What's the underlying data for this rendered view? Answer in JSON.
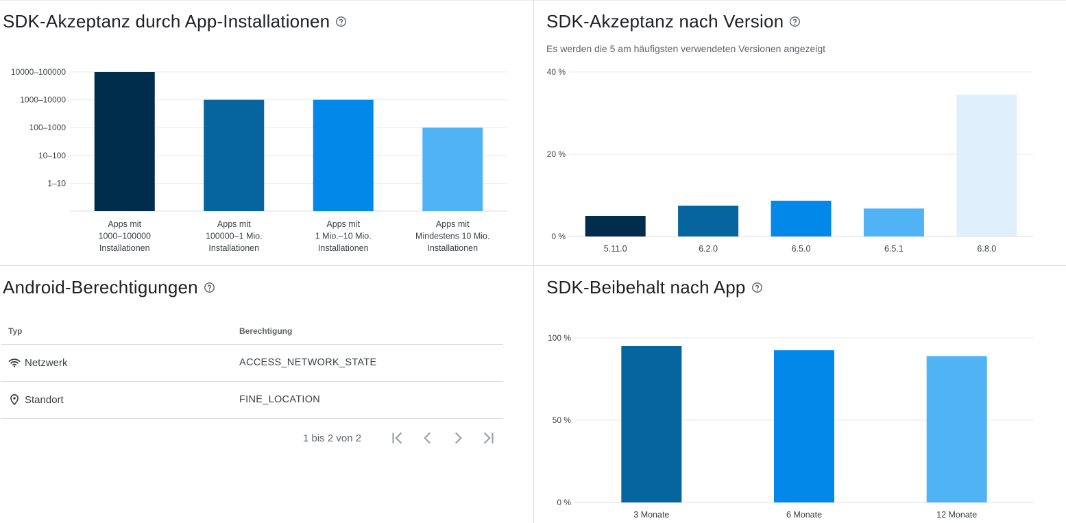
{
  "install_panel": {
    "title": "SDK-Akzeptanz durch App-Installationen"
  },
  "version_panel": {
    "title": "SDK-Akzeptanz nach Version",
    "subtitle": "Es werden die 5 am häufigsten verwendeten Versionen angezeigt"
  },
  "permissions_panel": {
    "title": "Android-Berechtigungen",
    "columns": {
      "type": "Typ",
      "permission": "Berechtigung"
    },
    "rows": [
      {
        "type": "Netzwerk",
        "icon": "wifi-icon",
        "permission": "ACCESS_NETWORK_STATE"
      },
      {
        "type": "Standort",
        "icon": "location-pin-icon",
        "permission": "FINE_LOCATION"
      }
    ],
    "pagination": {
      "range_text": "1 bis 2 von 2"
    }
  },
  "retention_panel": {
    "title": "SDK-Beibehalt nach App"
  },
  "colors": {
    "navy": "#002d4c",
    "blue_dark": "#06659f",
    "blue": "#0288e8",
    "blue_light": "#50b3f6",
    "blue_pale": "#dfeffc",
    "grid": "#e8eaed",
    "axis": "#dadce0"
  },
  "chart_data": [
    {
      "type": "bar",
      "categories": [
        [
          "Apps mit",
          "1000–100000",
          "Installationen"
        ],
        [
          "Apps mit",
          "100000–1 Mio.",
          "Installationen"
        ],
        [
          "Apps mit",
          "1 Mio.–10 Mio.",
          "Installationen"
        ],
        [
          "Apps mit",
          "Mindestens 10 Mio.",
          "Installationen"
        ]
      ],
      "y_tick_labels": [
        "1–10",
        "10–100",
        "100–1000",
        "1000–10000",
        "10000–100000"
      ],
      "values": [
        "10000–100000",
        "1000–10000",
        "1000–10000",
        "100–1000"
      ],
      "value_levels": [
        5,
        4,
        4,
        3
      ],
      "colors": [
        "#002d4c",
        "#06659f",
        "#0288e8",
        "#50b3f6"
      ],
      "grid": true
    },
    {
      "type": "bar",
      "categories": [
        "5.11.0",
        "6.2.0",
        "6.5.0",
        "6.5.1",
        "6.8.0"
      ],
      "values": [
        5,
        7.5,
        8.7,
        6.8,
        34.5
      ],
      "y_unit": "%",
      "y_ticks": [
        {
          "v": 0,
          "label": "0 %"
        },
        {
          "v": 20,
          "label": "20 %"
        },
        {
          "v": 40,
          "label": "40 %"
        }
      ],
      "ylim": [
        0,
        40
      ],
      "colors": [
        "#002d4c",
        "#06659f",
        "#0288e8",
        "#50b3f6",
        "#dfeffc"
      ],
      "grid": true
    },
    {
      "type": "bar",
      "categories": [
        "3 Monate",
        "6 Monate",
        "12 Monate"
      ],
      "values": [
        95,
        92.5,
        89
      ],
      "y_unit": "%",
      "y_ticks": [
        {
          "v": 0,
          "label": "0 %"
        },
        {
          "v": 50,
          "label": "50 %"
        },
        {
          "v": 100,
          "label": "100 %"
        }
      ],
      "ylim": [
        0,
        100
      ],
      "colors": [
        "#06659f",
        "#0288e8",
        "#50b3f6"
      ],
      "grid": true
    }
  ]
}
